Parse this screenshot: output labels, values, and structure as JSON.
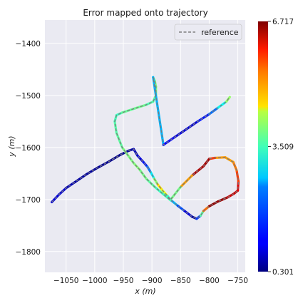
{
  "chart_data": {
    "type": "line",
    "title": "Error mapped onto trajectory",
    "xlabel": "x (m)",
    "ylabel": "y (m)",
    "xlim": [
      -1087,
      -737
    ],
    "ylim": [
      -1840,
      -1355
    ],
    "xticks": [
      -1050,
      -1000,
      -950,
      -900,
      -850,
      -800,
      -750
    ],
    "xtick_labels": [
      "−1050",
      "−1000",
      "−950",
      "−900",
      "−850",
      "−800",
      "−750"
    ],
    "yticks": [
      -1400,
      -1500,
      -1600,
      -1700,
      -1800
    ],
    "ytick_labels": [
      "−1400",
      "−1500",
      "−1600",
      "−1700",
      "−1800"
    ],
    "grid": true,
    "legend": {
      "placement": "top-right",
      "entries": [
        {
          "label": "reference",
          "style": "dashed",
          "color": "#7f7f7f"
        }
      ]
    },
    "colorbar": {
      "min": 0.301,
      "max": 6.717,
      "ticks": [
        0.301,
        3.509,
        6.717
      ],
      "tick_labels": [
        "0.301",
        "3.509",
        "6.717"
      ],
      "colormap": "jet"
    },
    "series": [
      {
        "name": "reference",
        "x": [
          -1075,
          -1062,
          -1050,
          -1035,
          -1015,
          -995,
          -975,
          -955,
          -940,
          -932,
          -925,
          -915,
          -908,
          -902,
          -896,
          -890,
          -882,
          -873,
          -866,
          -855,
          -843,
          -830,
          -822,
          -815,
          -810,
          -800,
          -785,
          -768,
          -757,
          -750,
          -749,
          -752,
          -758,
          -772,
          -790,
          -800,
          -810,
          -830,
          -850,
          -868,
          -880,
          -895,
          -910,
          -922,
          -932,
          -952,
          -962,
          -965,
          -962,
          -952,
          -930,
          -910,
          -898,
          -893,
          -893,
          -895,
          -898,
          -880,
          -860,
          -840,
          -820,
          -800,
          -785,
          -770,
          -764
        ],
        "y": [
          -1705,
          -1690,
          -1678,
          -1667,
          -1652,
          -1639,
          -1627,
          -1614,
          -1606,
          -1603,
          -1616,
          -1628,
          -1637,
          -1648,
          -1660,
          -1671,
          -1682,
          -1693,
          -1702,
          -1712,
          -1722,
          -1733,
          -1737,
          -1731,
          -1722,
          -1713,
          -1704,
          -1696,
          -1689,
          -1683,
          -1665,
          -1644,
          -1628,
          -1619,
          -1620,
          -1622,
          -1636,
          -1654,
          -1676,
          -1701,
          -1690,
          -1676,
          -1660,
          -1642,
          -1630,
          -1600,
          -1572,
          -1550,
          -1538,
          -1533,
          -1525,
          -1518,
          -1512,
          -1500,
          -1483,
          -1472,
          -1465,
          -1595,
          -1580,
          -1565,
          -1550,
          -1536,
          -1524,
          -1512,
          -1503
        ],
        "errors": [
          0.8,
          1.0,
          0.7,
          0.6,
          0.5,
          0.5,
          0.4,
          0.4,
          0.5,
          0.6,
          0.8,
          1.0,
          1.5,
          2.2,
          3.0,
          4.2,
          4.8,
          3.5,
          2.5,
          2.0,
          1.2,
          0.6,
          0.4,
          2.5,
          4.0,
          6.5,
          6.7,
          6.4,
          6.0,
          6.5,
          5.6,
          5.5,
          4.8,
          5.0,
          4.9,
          6.3,
          6.6,
          6.2,
          3.6,
          3.3,
          3.0,
          3.2,
          3.4,
          3.5,
          3.6,
          3.4,
          3.2,
          3.3,
          3.0,
          3.2,
          3.5,
          3.3,
          3.1,
          3.4,
          3.6,
          3.5,
          3.3,
          1.2,
          1.0,
          0.8,
          0.9,
          1.6,
          2.0,
          3.5,
          3.8
        ]
      }
    ]
  }
}
